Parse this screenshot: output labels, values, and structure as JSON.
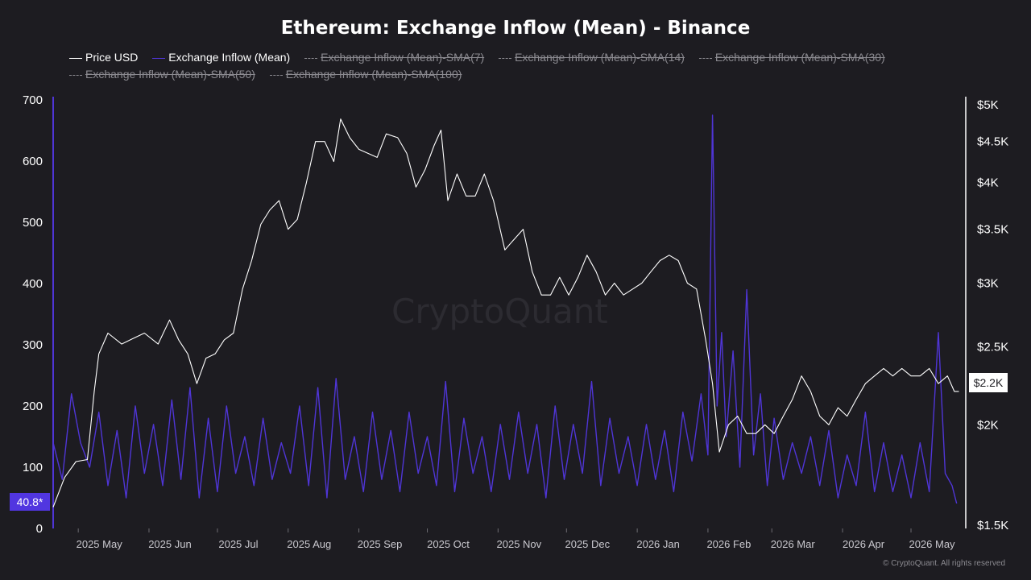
{
  "copyright": "© CryptoQuant. All rights reserved",
  "watermark": "CryptoQuant",
  "legend": [
    {
      "label": "Price USD",
      "color": "#ffffff",
      "active": true,
      "style": "solid"
    },
    {
      "label": "Exchange Inflow (Mean)",
      "color": "#4f35d6",
      "active": true,
      "style": "solid"
    },
    {
      "label": "Exchange Inflow (Mean)-SMA(7)",
      "color": "#8b8a90",
      "active": false,
      "style": "dashed"
    },
    {
      "label": "Exchange Inflow (Mean)-SMA(14)",
      "color": "#8b8a90",
      "active": false,
      "style": "dashed"
    },
    {
      "label": "Exchange Inflow (Mean)-SMA(30)",
      "color": "#8b8a90",
      "active": false,
      "style": "dashed"
    },
    {
      "label": "Exchange Inflow (Mean)-SMA(50)",
      "color": "#8b8a90",
      "active": false,
      "style": "dashed"
    },
    {
      "label": "Exchange Inflow (Mean)-SMA(100)",
      "color": "#8b8a90",
      "active": false,
      "style": "dashed"
    }
  ],
  "chart_data": {
    "type": "line",
    "title": "Ethereum: Exchange Inflow (Mean) - Binance",
    "x_ticks": [
      "2025 May",
      "2025 Jun",
      "2025 Jul",
      "2025 Aug",
      "2025 Sep",
      "2025 Oct",
      "2025 Nov",
      "2025 Dec",
      "2026 Jan",
      "2026 Feb",
      "2026 Mar",
      "2026 Apr",
      "2026 May"
    ],
    "x_range": [
      "2025-04-20",
      "2026-05-25"
    ],
    "y_left": {
      "ticks": [
        "0",
        "100",
        "200",
        "300",
        "400",
        "500",
        "600",
        "700"
      ],
      "ylim": [
        0,
        700
      ],
      "color": "#ffffff"
    },
    "y_right": {
      "ticks": [
        "$1.5K",
        "$2K",
        "$2.5K",
        "$3K",
        "$3.5K",
        "$4K",
        "$4.5K",
        "$5K"
      ],
      "values": [
        1500,
        2000,
        2500,
        3000,
        3500,
        4000,
        4500,
        5000
      ],
      "scale": "log",
      "ylim": [
        1500,
        5000
      ],
      "color": "#ffffff"
    },
    "current_labels": {
      "inflow": "40.8*",
      "price": "$2.2K"
    },
    "grid": false,
    "legend_position": "top-left",
    "series": [
      {
        "name": "Price USD",
        "axis": "right",
        "color": "#ffffff",
        "points": [
          [
            "2025-04-20",
            1580
          ],
          [
            "2025-04-25",
            1720
          ],
          [
            "2025-04-30",
            1800
          ],
          [
            "2025-05-05",
            1810
          ],
          [
            "2025-05-08",
            2200
          ],
          [
            "2025-05-10",
            2450
          ],
          [
            "2025-05-14",
            2600
          ],
          [
            "2025-05-20",
            2520
          ],
          [
            "2025-05-25",
            2560
          ],
          [
            "2025-05-30",
            2600
          ],
          [
            "2025-06-05",
            2520
          ],
          [
            "2025-06-10",
            2700
          ],
          [
            "2025-06-14",
            2550
          ],
          [
            "2025-06-18",
            2450
          ],
          [
            "2025-06-22",
            2250
          ],
          [
            "2025-06-26",
            2420
          ],
          [
            "2025-06-30",
            2450
          ],
          [
            "2025-07-04",
            2550
          ],
          [
            "2025-07-08",
            2600
          ],
          [
            "2025-07-12",
            2950
          ],
          [
            "2025-07-16",
            3200
          ],
          [
            "2025-07-20",
            3550
          ],
          [
            "2025-07-24",
            3700
          ],
          [
            "2025-07-28",
            3800
          ],
          [
            "2025-08-01",
            3500
          ],
          [
            "2025-08-05",
            3600
          ],
          [
            "2025-08-09",
            4000
          ],
          [
            "2025-08-13",
            4500
          ],
          [
            "2025-08-17",
            4500
          ],
          [
            "2025-08-21",
            4250
          ],
          [
            "2025-08-24",
            4800
          ],
          [
            "2025-08-28",
            4550
          ],
          [
            "2025-09-01",
            4400
          ],
          [
            "2025-09-05",
            4350
          ],
          [
            "2025-09-09",
            4300
          ],
          [
            "2025-09-13",
            4600
          ],
          [
            "2025-09-18",
            4550
          ],
          [
            "2025-09-22",
            4350
          ],
          [
            "2025-09-26",
            3950
          ],
          [
            "2025-09-30",
            4150
          ],
          [
            "2025-10-04",
            4450
          ],
          [
            "2025-10-07",
            4650
          ],
          [
            "2025-10-10",
            3800
          ],
          [
            "2025-10-14",
            4100
          ],
          [
            "2025-10-18",
            3850
          ],
          [
            "2025-10-22",
            3850
          ],
          [
            "2025-10-26",
            4100
          ],
          [
            "2025-10-30",
            3800
          ],
          [
            "2025-11-04",
            3300
          ],
          [
            "2025-11-08",
            3400
          ],
          [
            "2025-11-12",
            3500
          ],
          [
            "2025-11-16",
            3100
          ],
          [
            "2025-11-20",
            2900
          ],
          [
            "2025-11-24",
            2900
          ],
          [
            "2025-11-28",
            3050
          ],
          [
            "2025-12-02",
            2900
          ],
          [
            "2025-12-06",
            3050
          ],
          [
            "2025-12-10",
            3250
          ],
          [
            "2025-12-14",
            3100
          ],
          [
            "2025-12-18",
            2900
          ],
          [
            "2025-12-22",
            3000
          ],
          [
            "2025-12-26",
            2900
          ],
          [
            "2025-12-30",
            2950
          ],
          [
            "2026-01-03",
            3000
          ],
          [
            "2026-01-07",
            3100
          ],
          [
            "2026-01-11",
            3200
          ],
          [
            "2026-01-15",
            3250
          ],
          [
            "2026-01-19",
            3200
          ],
          [
            "2026-01-23",
            3000
          ],
          [
            "2026-01-27",
            2950
          ],
          [
            "2026-01-31",
            2550
          ],
          [
            "2026-02-03",
            2250
          ],
          [
            "2026-02-06",
            1850
          ],
          [
            "2026-02-10",
            2000
          ],
          [
            "2026-02-14",
            2050
          ],
          [
            "2026-02-18",
            1950
          ],
          [
            "2026-02-22",
            1950
          ],
          [
            "2026-02-26",
            2000
          ],
          [
            "2026-03-02",
            1950
          ],
          [
            "2026-03-06",
            2050
          ],
          [
            "2026-03-10",
            2150
          ],
          [
            "2026-03-14",
            2300
          ],
          [
            "2026-03-18",
            2200
          ],
          [
            "2026-03-22",
            2050
          ],
          [
            "2026-03-26",
            2000
          ],
          [
            "2026-03-30",
            2100
          ],
          [
            "2026-04-03",
            2050
          ],
          [
            "2026-04-07",
            2150
          ],
          [
            "2026-04-11",
            2250
          ],
          [
            "2026-04-15",
            2300
          ],
          [
            "2026-04-19",
            2350
          ],
          [
            "2026-04-23",
            2300
          ],
          [
            "2026-04-27",
            2350
          ],
          [
            "2026-05-01",
            2300
          ],
          [
            "2026-05-05",
            2300
          ],
          [
            "2026-05-09",
            2350
          ],
          [
            "2026-05-13",
            2250
          ],
          [
            "2026-05-17",
            2300
          ],
          [
            "2026-05-20",
            2200
          ],
          [
            "2026-05-22",
            2200
          ]
        ]
      },
      {
        "name": "Exchange Inflow (Mean)",
        "axis": "left",
        "color": "#4f35d6",
        "points": [
          [
            "2025-04-20",
            140
          ],
          [
            "2025-04-24",
            80
          ],
          [
            "2025-04-28",
            220
          ],
          [
            "2025-05-02",
            140
          ],
          [
            "2025-05-06",
            100
          ],
          [
            "2025-05-10",
            190
          ],
          [
            "2025-05-14",
            70
          ],
          [
            "2025-05-18",
            160
          ],
          [
            "2025-05-22",
            50
          ],
          [
            "2025-05-26",
            200
          ],
          [
            "2025-05-30",
            90
          ],
          [
            "2025-06-03",
            170
          ],
          [
            "2025-06-07",
            70
          ],
          [
            "2025-06-11",
            210
          ],
          [
            "2025-06-15",
            80
          ],
          [
            "2025-06-19",
            230
          ],
          [
            "2025-06-23",
            50
          ],
          [
            "2025-06-27",
            180
          ],
          [
            "2025-07-01",
            60
          ],
          [
            "2025-07-05",
            200
          ],
          [
            "2025-07-09",
            90
          ],
          [
            "2025-07-13",
            150
          ],
          [
            "2025-07-17",
            70
          ],
          [
            "2025-07-21",
            180
          ],
          [
            "2025-07-25",
            80
          ],
          [
            "2025-07-29",
            140
          ],
          [
            "2025-08-02",
            90
          ],
          [
            "2025-08-06",
            200
          ],
          [
            "2025-08-10",
            70
          ],
          [
            "2025-08-14",
            230
          ],
          [
            "2025-08-18",
            50
          ],
          [
            "2025-08-22",
            245
          ],
          [
            "2025-08-26",
            80
          ],
          [
            "2025-08-30",
            150
          ],
          [
            "2025-09-03",
            60
          ],
          [
            "2025-09-07",
            190
          ],
          [
            "2025-09-11",
            80
          ],
          [
            "2025-09-15",
            160
          ],
          [
            "2025-09-19",
            60
          ],
          [
            "2025-09-23",
            190
          ],
          [
            "2025-09-27",
            90
          ],
          [
            "2025-10-01",
            150
          ],
          [
            "2025-10-05",
            70
          ],
          [
            "2025-10-09",
            240
          ],
          [
            "2025-10-13",
            60
          ],
          [
            "2025-10-17",
            180
          ],
          [
            "2025-10-21",
            90
          ],
          [
            "2025-10-25",
            150
          ],
          [
            "2025-10-29",
            60
          ],
          [
            "2025-11-02",
            170
          ],
          [
            "2025-11-06",
            80
          ],
          [
            "2025-11-10",
            190
          ],
          [
            "2025-11-14",
            90
          ],
          [
            "2025-11-18",
            170
          ],
          [
            "2025-11-22",
            50
          ],
          [
            "2025-11-26",
            200
          ],
          [
            "2025-11-30",
            80
          ],
          [
            "2025-12-04",
            170
          ],
          [
            "2025-12-08",
            90
          ],
          [
            "2025-12-12",
            240
          ],
          [
            "2025-12-16",
            70
          ],
          [
            "2025-12-20",
            180
          ],
          [
            "2025-12-24",
            90
          ],
          [
            "2025-12-28",
            150
          ],
          [
            "2026-01-01",
            70
          ],
          [
            "2026-01-05",
            170
          ],
          [
            "2026-01-09",
            80
          ],
          [
            "2026-01-13",
            160
          ],
          [
            "2026-01-17",
            60
          ],
          [
            "2026-01-21",
            190
          ],
          [
            "2026-01-25",
            110
          ],
          [
            "2026-01-29",
            220
          ],
          [
            "2026-02-01",
            120
          ],
          [
            "2026-02-03",
            675
          ],
          [
            "2026-02-05",
            200
          ],
          [
            "2026-02-07",
            320
          ],
          [
            "2026-02-09",
            150
          ],
          [
            "2026-02-12",
            290
          ],
          [
            "2026-02-15",
            100
          ],
          [
            "2026-02-18",
            390
          ],
          [
            "2026-02-21",
            120
          ],
          [
            "2026-02-24",
            220
          ],
          [
            "2026-02-27",
            70
          ],
          [
            "2026-03-02",
            180
          ],
          [
            "2026-03-06",
            80
          ],
          [
            "2026-03-10",
            140
          ],
          [
            "2026-03-14",
            90
          ],
          [
            "2026-03-18",
            150
          ],
          [
            "2026-03-22",
            70
          ],
          [
            "2026-03-26",
            160
          ],
          [
            "2026-03-30",
            50
          ],
          [
            "2026-04-03",
            120
          ],
          [
            "2026-04-07",
            70
          ],
          [
            "2026-04-11",
            190
          ],
          [
            "2026-04-15",
            60
          ],
          [
            "2026-04-19",
            140
          ],
          [
            "2026-04-23",
            60
          ],
          [
            "2026-04-27",
            120
          ],
          [
            "2026-05-01",
            50
          ],
          [
            "2026-05-05",
            140
          ],
          [
            "2026-05-09",
            60
          ],
          [
            "2026-05-13",
            320
          ],
          [
            "2026-05-16",
            90
          ],
          [
            "2026-05-19",
            70
          ],
          [
            "2026-05-21",
            40.8
          ]
        ]
      }
    ]
  }
}
